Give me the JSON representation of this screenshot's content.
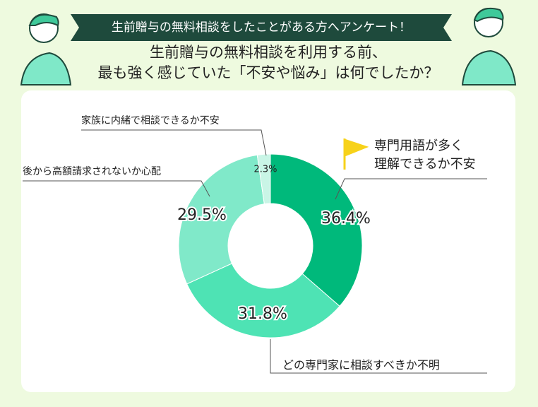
{
  "chart_data": {
    "type": "donut",
    "banner": "生前贈与の無料相談をしたことがある方へアンケート！",
    "title": "生前贈与の無料相談を利用する前、\n最も強く感じていた「不安や悩み」は何でしたか？",
    "categories": [
      "専門用語が多く\n理解できるか不安",
      "どの専門家に相談すべきか不明",
      "後から高額請求されないか心配",
      "家族に内緒で相談できるか不安"
    ],
    "values": [
      36.4,
      31.8,
      29.5,
      2.3
    ],
    "value_labels": [
      "36.4%",
      "31.8%",
      "29.5%",
      "2.3%"
    ],
    "colors": [
      "#00b97b",
      "#4ee3b4",
      "#80e9c9",
      "#c9f5e6"
    ]
  }
}
